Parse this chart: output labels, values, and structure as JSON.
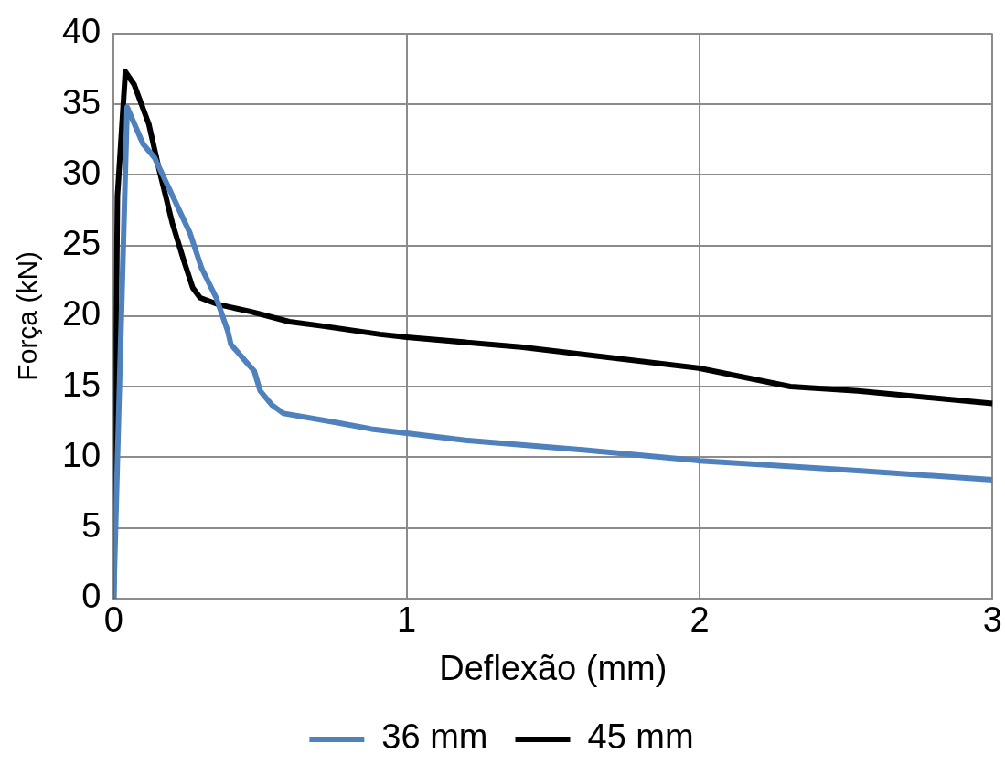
{
  "chart_data": {
    "type": "line",
    "xlabel": "Deflexão (mm)",
    "ylabel": "Força (kN)",
    "xlim": [
      0,
      3
    ],
    "xticks": [
      0,
      1,
      2,
      3
    ],
    "ylim": [
      0,
      40
    ],
    "yticks": [
      0,
      5,
      10,
      15,
      20,
      25,
      30,
      35,
      40
    ],
    "grid": true,
    "legend": "bottom",
    "marker": "none",
    "line_style": "solid",
    "series": [
      {
        "name": "36 mm",
        "color": "#4f81bd",
        "x": [
          0,
          0.046,
          0.1,
          0.14,
          0.19,
          0.26,
          0.3,
          0.35,
          0.39,
          0.4,
          0.45,
          0.48,
          0.5,
          0.54,
          0.58,
          0.75,
          0.88,
          1.0,
          1.2,
          1.61,
          2.0,
          2.54,
          3.0
        ],
        "values": [
          0,
          34.8,
          32.2,
          31.2,
          29,
          25.9,
          23.4,
          21.3,
          18.9,
          18.0,
          16.8,
          16.1,
          14.7,
          13.7,
          13.1,
          12.5,
          12.0,
          11.7,
          11.2,
          10.5,
          9.75,
          9.05,
          8.4
        ]
      },
      {
        "name": "45 mm",
        "color": "#000000",
        "x": [
          0,
          0.013,
          0.04,
          0.07,
          0.12,
          0.155,
          0.2,
          0.24,
          0.27,
          0.295,
          0.36,
          0.47,
          0.6,
          0.71,
          0.91,
          1.0,
          1.39,
          2.0,
          2.31,
          2.54,
          3.0
        ],
        "values": [
          0,
          28.5,
          37.3,
          36.4,
          33.6,
          30.4,
          26.6,
          23.9,
          22.0,
          21.3,
          20.8,
          20.3,
          19.6,
          19.3,
          18.7,
          18.5,
          17.8,
          16.3,
          15.0,
          14.7,
          13.8
        ]
      }
    ]
  }
}
